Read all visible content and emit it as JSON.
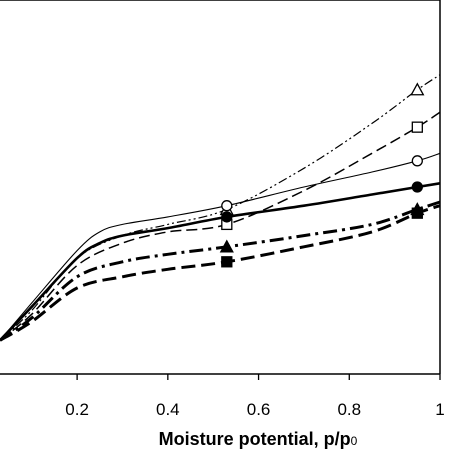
{
  "chart_data": {
    "type": "line",
    "xlabel": "Moisture potential, p/p",
    "xlabel_subscript": "0",
    "xlim": [
      0.03,
      1.0
    ],
    "ylim": [
      0,
      1
    ],
    "x_ticks": [
      0.2,
      0.4,
      0.6,
      0.8,
      1.0
    ],
    "x_tick_labels": [
      "0.2",
      "0.4",
      "0.6",
      "0.8",
      "1"
    ],
    "plot_frame": "top and right borders visible",
    "series": [
      {
        "id": "open-triangle",
        "line_style": "dash-dot-dot (thin)",
        "marker": "open-triangle",
        "points": [
          [
            0.03,
            0.09
          ],
          [
            0.1,
            0.17
          ],
          [
            0.2,
            0.31
          ],
          [
            0.3,
            0.37
          ],
          [
            0.4,
            0.4
          ],
          [
            0.53,
            0.44
          ],
          [
            0.7,
            0.55
          ],
          [
            0.85,
            0.67
          ],
          [
            0.95,
            0.76
          ],
          [
            1.0,
            0.8
          ]
        ],
        "marker_points": [
          [
            0.53,
            0.44
          ],
          [
            0.95,
            0.76
          ]
        ]
      },
      {
        "id": "open-square",
        "line_style": "long dash (thin)",
        "marker": "open-square",
        "points": [
          [
            0.03,
            0.09
          ],
          [
            0.1,
            0.16
          ],
          [
            0.2,
            0.29
          ],
          [
            0.3,
            0.35
          ],
          [
            0.4,
            0.38
          ],
          [
            0.53,
            0.4
          ],
          [
            0.7,
            0.49
          ],
          [
            0.85,
            0.59
          ],
          [
            0.95,
            0.66
          ],
          [
            1.0,
            0.7
          ]
        ],
        "marker_points": [
          [
            0.53,
            0.4
          ],
          [
            0.95,
            0.66
          ]
        ]
      },
      {
        "id": "open-circle",
        "line_style": "solid (thin)",
        "marker": "open-circle",
        "points": [
          [
            0.03,
            0.09
          ],
          [
            0.1,
            0.19
          ],
          [
            0.2,
            0.33
          ],
          [
            0.25,
            0.38
          ],
          [
            0.3,
            0.4
          ],
          [
            0.4,
            0.42
          ],
          [
            0.53,
            0.45
          ],
          [
            0.7,
            0.5
          ],
          [
            0.85,
            0.54
          ],
          [
            0.95,
            0.57
          ],
          [
            1.0,
            0.59
          ]
        ],
        "marker_points": [
          [
            0.53,
            0.45
          ],
          [
            0.95,
            0.57
          ]
        ]
      },
      {
        "id": "filled-circle",
        "line_style": "solid (thick)",
        "marker": "filled-circle",
        "points": [
          [
            0.03,
            0.09
          ],
          [
            0.1,
            0.18
          ],
          [
            0.2,
            0.31
          ],
          [
            0.25,
            0.35
          ],
          [
            0.3,
            0.37
          ],
          [
            0.4,
            0.39
          ],
          [
            0.53,
            0.42
          ],
          [
            0.7,
            0.45
          ],
          [
            0.85,
            0.48
          ],
          [
            0.95,
            0.5
          ],
          [
            1.0,
            0.51
          ]
        ],
        "marker_points": [
          [
            0.53,
            0.42
          ],
          [
            0.95,
            0.5
          ]
        ]
      },
      {
        "id": "filled-triangle",
        "line_style": "dash-dot (thick)",
        "marker": "filled-triangle",
        "points": [
          [
            0.03,
            0.09
          ],
          [
            0.1,
            0.15
          ],
          [
            0.2,
            0.26
          ],
          [
            0.3,
            0.3
          ],
          [
            0.4,
            0.32
          ],
          [
            0.53,
            0.34
          ],
          [
            0.7,
            0.37
          ],
          [
            0.85,
            0.4
          ],
          [
            0.95,
            0.44
          ],
          [
            1.0,
            0.46
          ]
        ],
        "marker_points": [
          [
            0.53,
            0.34
          ],
          [
            0.95,
            0.44
          ]
        ]
      },
      {
        "id": "filled-square",
        "line_style": "long dash (thick)",
        "marker": "filled-square",
        "points": [
          [
            0.03,
            0.09
          ],
          [
            0.1,
            0.14
          ],
          [
            0.2,
            0.23
          ],
          [
            0.3,
            0.26
          ],
          [
            0.4,
            0.28
          ],
          [
            0.53,
            0.3
          ],
          [
            0.7,
            0.34
          ],
          [
            0.85,
            0.38
          ],
          [
            0.95,
            0.43
          ],
          [
            1.0,
            0.45
          ]
        ],
        "marker_points": [
          [
            0.53,
            0.3
          ],
          [
            0.95,
            0.43
          ]
        ]
      }
    ]
  }
}
